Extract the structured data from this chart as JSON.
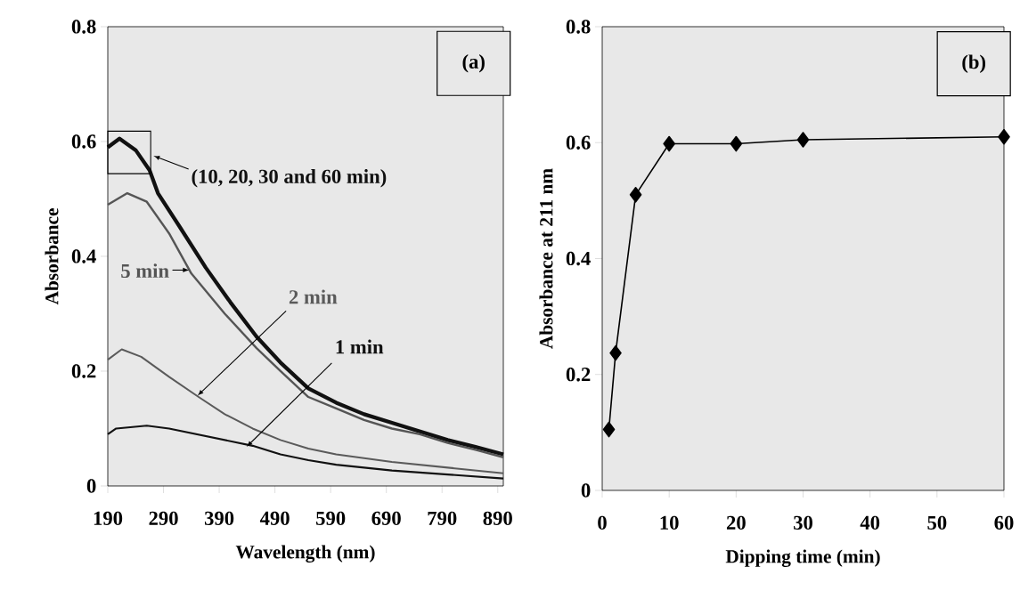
{
  "chart_data": [
    {
      "type": "line",
      "annotations": [
        "(a)"
      ],
      "xlabel": "Wavelength (nm)",
      "ylabel": "Absorbance",
      "xlim": [
        190,
        900
      ],
      "ylim": [
        0,
        0.8
      ],
      "xticks": [
        190,
        290,
        390,
        490,
        590,
        690,
        790,
        890
      ],
      "yticks": [
        0,
        0.2,
        0.4,
        0.6,
        0.8
      ],
      "marker": "none",
      "line_style": "solid",
      "series": [
        {
          "name": "(10, 20, 30 and 60 min)",
          "color": "#111111",
          "x": [
            190,
            211,
            240,
            265,
            280,
            320,
            366,
            410,
            457,
            500,
            550,
            600,
            650,
            700,
            750,
            800,
            850,
            900
          ],
          "values": [
            0.59,
            0.605,
            0.585,
            0.55,
            0.51,
            0.45,
            0.38,
            0.32,
            0.26,
            0.215,
            0.17,
            0.145,
            0.125,
            0.11,
            0.095,
            0.08,
            0.068,
            0.055
          ]
        },
        {
          "name": "5 min",
          "color": "#555555",
          "x": [
            190,
            225,
            260,
            300,
            340,
            400,
            457,
            500,
            550,
            600,
            650,
            700,
            750,
            800,
            850,
            900
          ],
          "values": [
            0.49,
            0.51,
            0.495,
            0.44,
            0.37,
            0.3,
            0.24,
            0.2,
            0.155,
            0.135,
            0.115,
            0.1,
            0.09,
            0.075,
            0.063,
            0.05
          ]
        },
        {
          "name": "2 min",
          "color": "#5a5a5a",
          "x": [
            190,
            215,
            250,
            300,
            353,
            400,
            450,
            500,
            550,
            600,
            700,
            800,
            900
          ],
          "values": [
            0.22,
            0.238,
            0.225,
            0.19,
            0.155,
            0.125,
            0.1,
            0.08,
            0.065,
            0.055,
            0.042,
            0.032,
            0.022
          ]
        },
        {
          "name": "1 min",
          "color": "#111111",
          "x": [
            190,
            205,
            260,
            300,
            350,
            400,
            450,
            500,
            550,
            600,
            700,
            800,
            900
          ],
          "values": [
            0.09,
            0.1,
            0.105,
            0.1,
            0.09,
            0.08,
            0.07,
            0.055,
            0.045,
            0.037,
            0.027,
            0.02,
            0.013
          ]
        }
      ]
    },
    {
      "type": "line",
      "annotations": [
        "(b)"
      ],
      "xlabel": "Dipping time (min)",
      "ylabel": "Absorbance at 211 nm",
      "xlim": [
        0,
        60
      ],
      "ylim": [
        0,
        0.8
      ],
      "xticks": [
        0,
        10,
        20,
        30,
        40,
        50,
        60
      ],
      "yticks": [
        0,
        0.2,
        0.4,
        0.6,
        0.8
      ],
      "marker": "diamond",
      "line_style": "solid",
      "color": "#000000",
      "x": [
        1,
        2,
        5,
        10,
        20,
        30,
        60
      ],
      "values": [
        0.105,
        0.237,
        0.51,
        0.598,
        0.598,
        0.605,
        0.61
      ]
    }
  ]
}
